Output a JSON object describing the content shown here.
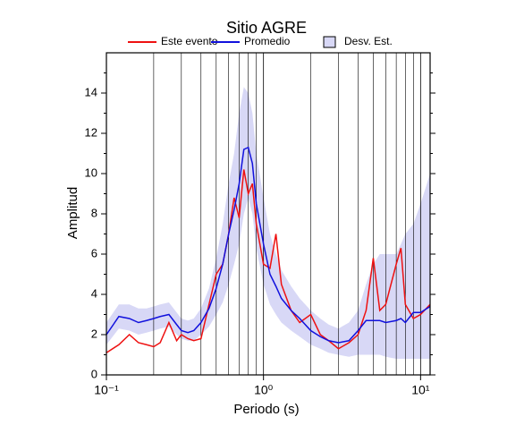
{
  "chart_data": {
    "type": "line",
    "title": "Sitio AGRE",
    "xlabel": "Periodo (s)",
    "ylabel": "Amplitud",
    "xscale": "log",
    "xlim": [
      0.1,
      11.5
    ],
    "ylim": [
      0,
      16
    ],
    "xticks": [
      {
        "value": 0.1,
        "label": "10⁻¹"
      },
      {
        "value": 1,
        "label": "10⁰"
      },
      {
        "value": 10,
        "label": "10¹"
      }
    ],
    "xgrid_lines": [
      0.2,
      0.3,
      0.4,
      0.5,
      0.6,
      0.7,
      0.8,
      0.9,
      2,
      3,
      4,
      5,
      6,
      7,
      8,
      9
    ],
    "yticks": [
      0,
      2,
      4,
      6,
      8,
      10,
      12,
      14
    ],
    "yminorticks": [
      1,
      3,
      5,
      7,
      9,
      11,
      13,
      15
    ],
    "x": [
      0.1,
      0.12,
      0.14,
      0.16,
      0.18,
      0.2,
      0.22,
      0.25,
      0.28,
      0.3,
      0.33,
      0.36,
      0.4,
      0.45,
      0.5,
      0.55,
      0.6,
      0.65,
      0.7,
      0.75,
      0.8,
      0.85,
      0.9,
      1.0,
      1.1,
      1.2,
      1.3,
      1.5,
      1.7,
      2.0,
      2.3,
      2.6,
      3.0,
      3.5,
      4.0,
      4.5,
      5.0,
      5.5,
      6.0,
      7.0,
      7.5,
      8.0,
      9.0,
      10,
      11.5
    ],
    "band": {
      "name": "Desv. Est.",
      "color": "#d8d8f6",
      "upper": [
        2.6,
        3.5,
        3.5,
        3.3,
        3.3,
        3.4,
        3.5,
        3.6,
        3.1,
        2.8,
        2.7,
        2.8,
        3.3,
        4.3,
        5.8,
        7.5,
        9.5,
        11,
        13,
        14.3,
        14,
        13,
        11,
        8.8,
        7,
        6,
        5.2,
        4.4,
        3.8,
        3.2,
        2.8,
        2.5,
        2.3,
        2.6,
        3.2,
        4.5,
        5.5,
        6,
        6,
        6,
        6.5,
        7,
        7.5,
        8.5,
        10
      ],
      "lower": [
        1.5,
        2.3,
        2.2,
        2.0,
        2.1,
        2.2,
        2.3,
        2.4,
        2.0,
        1.8,
        1.7,
        1.7,
        2.0,
        2.4,
        3.0,
        3.6,
        4.5,
        5.5,
        6.5,
        8,
        8.8,
        8,
        6.3,
        4.5,
        3.5,
        3.0,
        2.6,
        2.2,
        1.9,
        1.5,
        1.3,
        1.1,
        1.0,
        0.9,
        1.0,
        1.0,
        1.0,
        1.0,
        0.9,
        0.8,
        0.8,
        0.8,
        0.8,
        0.8,
        0.8
      ]
    },
    "series": [
      {
        "name": "Este evento",
        "color": "#ee1111",
        "values": [
          1.1,
          1.5,
          2.0,
          1.6,
          1.5,
          1.4,
          1.6,
          2.6,
          1.7,
          2.0,
          1.8,
          1.7,
          1.8,
          3.5,
          5.0,
          5.5,
          7.0,
          8.8,
          7.8,
          10.2,
          9.0,
          9.5,
          7.5,
          5.5,
          5.3,
          7.0,
          4.5,
          3.2,
          2.6,
          3.0,
          2.0,
          1.7,
          1.3,
          1.6,
          2.0,
          3.2,
          5.8,
          3.2,
          3.5,
          5.5,
          6.3,
          3.5,
          2.8,
          3.0,
          3.5
        ]
      },
      {
        "name": "Promedio",
        "color": "#1111dd",
        "values": [
          2.0,
          2.9,
          2.8,
          2.6,
          2.7,
          2.8,
          2.9,
          3.0,
          2.5,
          2.2,
          2.1,
          2.2,
          2.6,
          3.3,
          4.3,
          5.5,
          7.0,
          8.2,
          9.5,
          11.2,
          11.3,
          10.5,
          8.5,
          6.5,
          5.0,
          4.4,
          3.8,
          3.2,
          2.8,
          2.2,
          1.9,
          1.7,
          1.6,
          1.7,
          2.2,
          2.7,
          2.7,
          2.7,
          2.6,
          2.7,
          2.8,
          2.6,
          3.1,
          3.1,
          3.4
        ]
      }
    ]
  }
}
